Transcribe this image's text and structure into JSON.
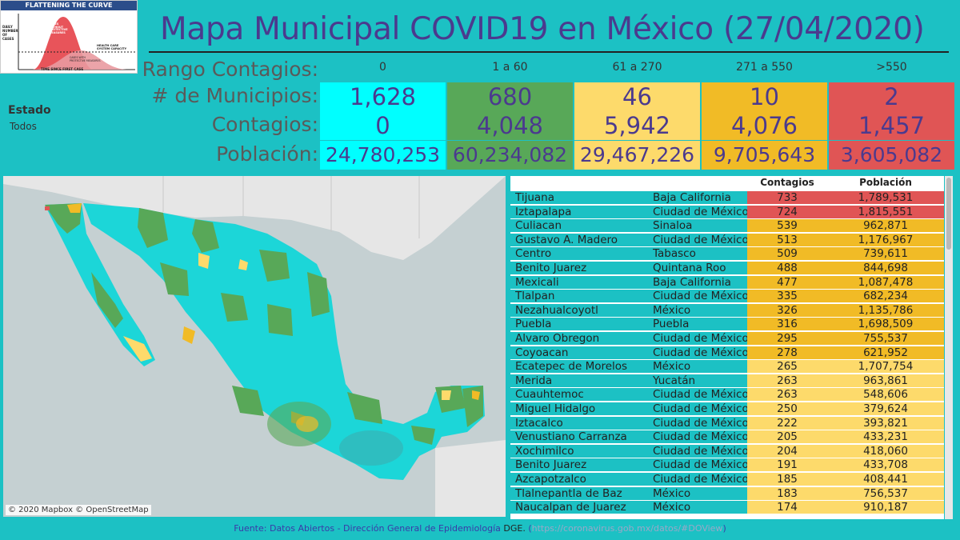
{
  "thumbnail": {
    "title": "FLATTENING THE CURVE",
    "y_label": "DAILY NUMBER OF CASES",
    "x_label": "TIME SINCE FIRST CASE",
    "capacity_label": "HEALTH CARE SYSTEM CAPACITY",
    "with_measures_label": "CASES WITH PROTECTIVE MEASURES",
    "without_measures_label": "CASES WITHOUT PROTECTIVE MEASURES"
  },
  "title": "Mapa Municipal COVID19 en México (27/04/2020)",
  "summary": {
    "row_labels": {
      "range": "Rango Contagios:",
      "municipios": "# de Municipios:",
      "contagios": "Contagios:",
      "poblacion": "Población:"
    },
    "columns": [
      {
        "range": "0",
        "municipios": "1,628",
        "contagios": "0",
        "poblacion": "24,780,253",
        "color": "#00ffff"
      },
      {
        "range": "1 a 60",
        "municipios": "680",
        "contagios": "4,048",
        "poblacion": "60,234,082",
        "color": "#58a858"
      },
      {
        "range": "61 a 270",
        "municipios": "46",
        "contagios": "5,942",
        "poblacion": "29,467,226",
        "color": "#fdda6b"
      },
      {
        "range": "271 a 550",
        "municipios": "10",
        "contagios": "4,076",
        "poblacion": "9,705,643",
        "color": "#f1bb26"
      },
      {
        "range": ">550",
        "municipios": "2",
        "contagios": "1,457",
        "poblacion": "3,605,082",
        "color": "#e05555"
      }
    ]
  },
  "filter": {
    "label": "Estado",
    "value": "Todos"
  },
  "map": {
    "credit": "© 2020 Mapbox © OpenStreetMap"
  },
  "table": {
    "headers": {
      "contagios": "Contagios",
      "poblacion": "Población"
    },
    "rows": [
      {
        "municipio": "Tijuana",
        "estado": "Baja California",
        "contagios": "733",
        "poblacion": "1,789,531",
        "color": "#e05555"
      },
      {
        "municipio": "Iztapalapa",
        "estado": "Ciudad de México",
        "contagios": "724",
        "poblacion": "1,815,551",
        "color": "#e05555"
      },
      {
        "municipio": "Culiacan",
        "estado": "Sinaloa",
        "contagios": "539",
        "poblacion": "962,871",
        "color": "#f1bb26"
      },
      {
        "municipio": "Gustavo A. Madero",
        "estado": "Ciudad de México",
        "contagios": "513",
        "poblacion": "1,176,967",
        "color": "#f1bb26"
      },
      {
        "municipio": "Centro",
        "estado": "Tabasco",
        "contagios": "509",
        "poblacion": "739,611",
        "color": "#f1bb26"
      },
      {
        "municipio": "Benito Juarez",
        "estado": "Quintana Roo",
        "contagios": "488",
        "poblacion": "844,698",
        "color": "#f1bb26"
      },
      {
        "municipio": "Mexicali",
        "estado": "Baja California",
        "contagios": "477",
        "poblacion": "1,087,478",
        "color": "#f1bb26"
      },
      {
        "municipio": "Tlalpan",
        "estado": "Ciudad de México",
        "contagios": "335",
        "poblacion": "682,234",
        "color": "#f1bb26"
      },
      {
        "municipio": "Nezahualcoyotl",
        "estado": "México",
        "contagios": "326",
        "poblacion": "1,135,786",
        "color": "#f1bb26"
      },
      {
        "municipio": "Puebla",
        "estado": "Puebla",
        "contagios": "316",
        "poblacion": "1,698,509",
        "color": "#f1bb26"
      },
      {
        "municipio": "Alvaro Obregon",
        "estado": "Ciudad de México",
        "contagios": "295",
        "poblacion": "755,537",
        "color": "#f1bb26"
      },
      {
        "municipio": "Coyoacan",
        "estado": "Ciudad de México",
        "contagios": "278",
        "poblacion": "621,952",
        "color": "#f1bb26"
      },
      {
        "municipio": "Ecatepec de Morelos",
        "estado": "México",
        "contagios": "265",
        "poblacion": "1,707,754",
        "color": "#fdda6b"
      },
      {
        "municipio": "Merida",
        "estado": "Yucatán",
        "contagios": "263",
        "poblacion": "963,861",
        "color": "#fdda6b"
      },
      {
        "municipio": "Cuauhtemoc",
        "estado": "Ciudad de México",
        "contagios": "263",
        "poblacion": "548,606",
        "color": "#fdda6b"
      },
      {
        "municipio": "Miguel Hidalgo",
        "estado": "Ciudad de México",
        "contagios": "250",
        "poblacion": "379,624",
        "color": "#fdda6b"
      },
      {
        "municipio": "Iztacalco",
        "estado": "Ciudad de México",
        "contagios": "222",
        "poblacion": "393,821",
        "color": "#fdda6b"
      },
      {
        "municipio": "Venustiano Carranza",
        "estado": "Ciudad de México",
        "contagios": "205",
        "poblacion": "433,231",
        "color": "#fdda6b"
      },
      {
        "municipio": "Xochimilco",
        "estado": "Ciudad de México",
        "contagios": "204",
        "poblacion": "418,060",
        "color": "#fdda6b"
      },
      {
        "municipio": "Benito Juarez",
        "estado": "Ciudad de México",
        "contagios": "191",
        "poblacion": "433,708",
        "color": "#fdda6b"
      },
      {
        "municipio": "Azcapotzalco",
        "estado": "Ciudad de México",
        "contagios": "185",
        "poblacion": "408,441",
        "color": "#fdda6b"
      },
      {
        "municipio": "Tlalnepantla de Baz",
        "estado": "México",
        "contagios": "183",
        "poblacion": "756,537",
        "color": "#fdda6b"
      },
      {
        "municipio": "Naucalpan de Juarez",
        "estado": "México",
        "contagios": "174",
        "poblacion": "910,187",
        "color": "#fdda6b"
      }
    ]
  },
  "footer": {
    "source": "Fuente: Datos Abiertos - Dirección General de Epidemiología",
    "dge": "DGE.",
    "paren_open": " (",
    "link": "https://coronavirus.gob.mx/datos/#DOView",
    "paren_close": ")"
  }
}
